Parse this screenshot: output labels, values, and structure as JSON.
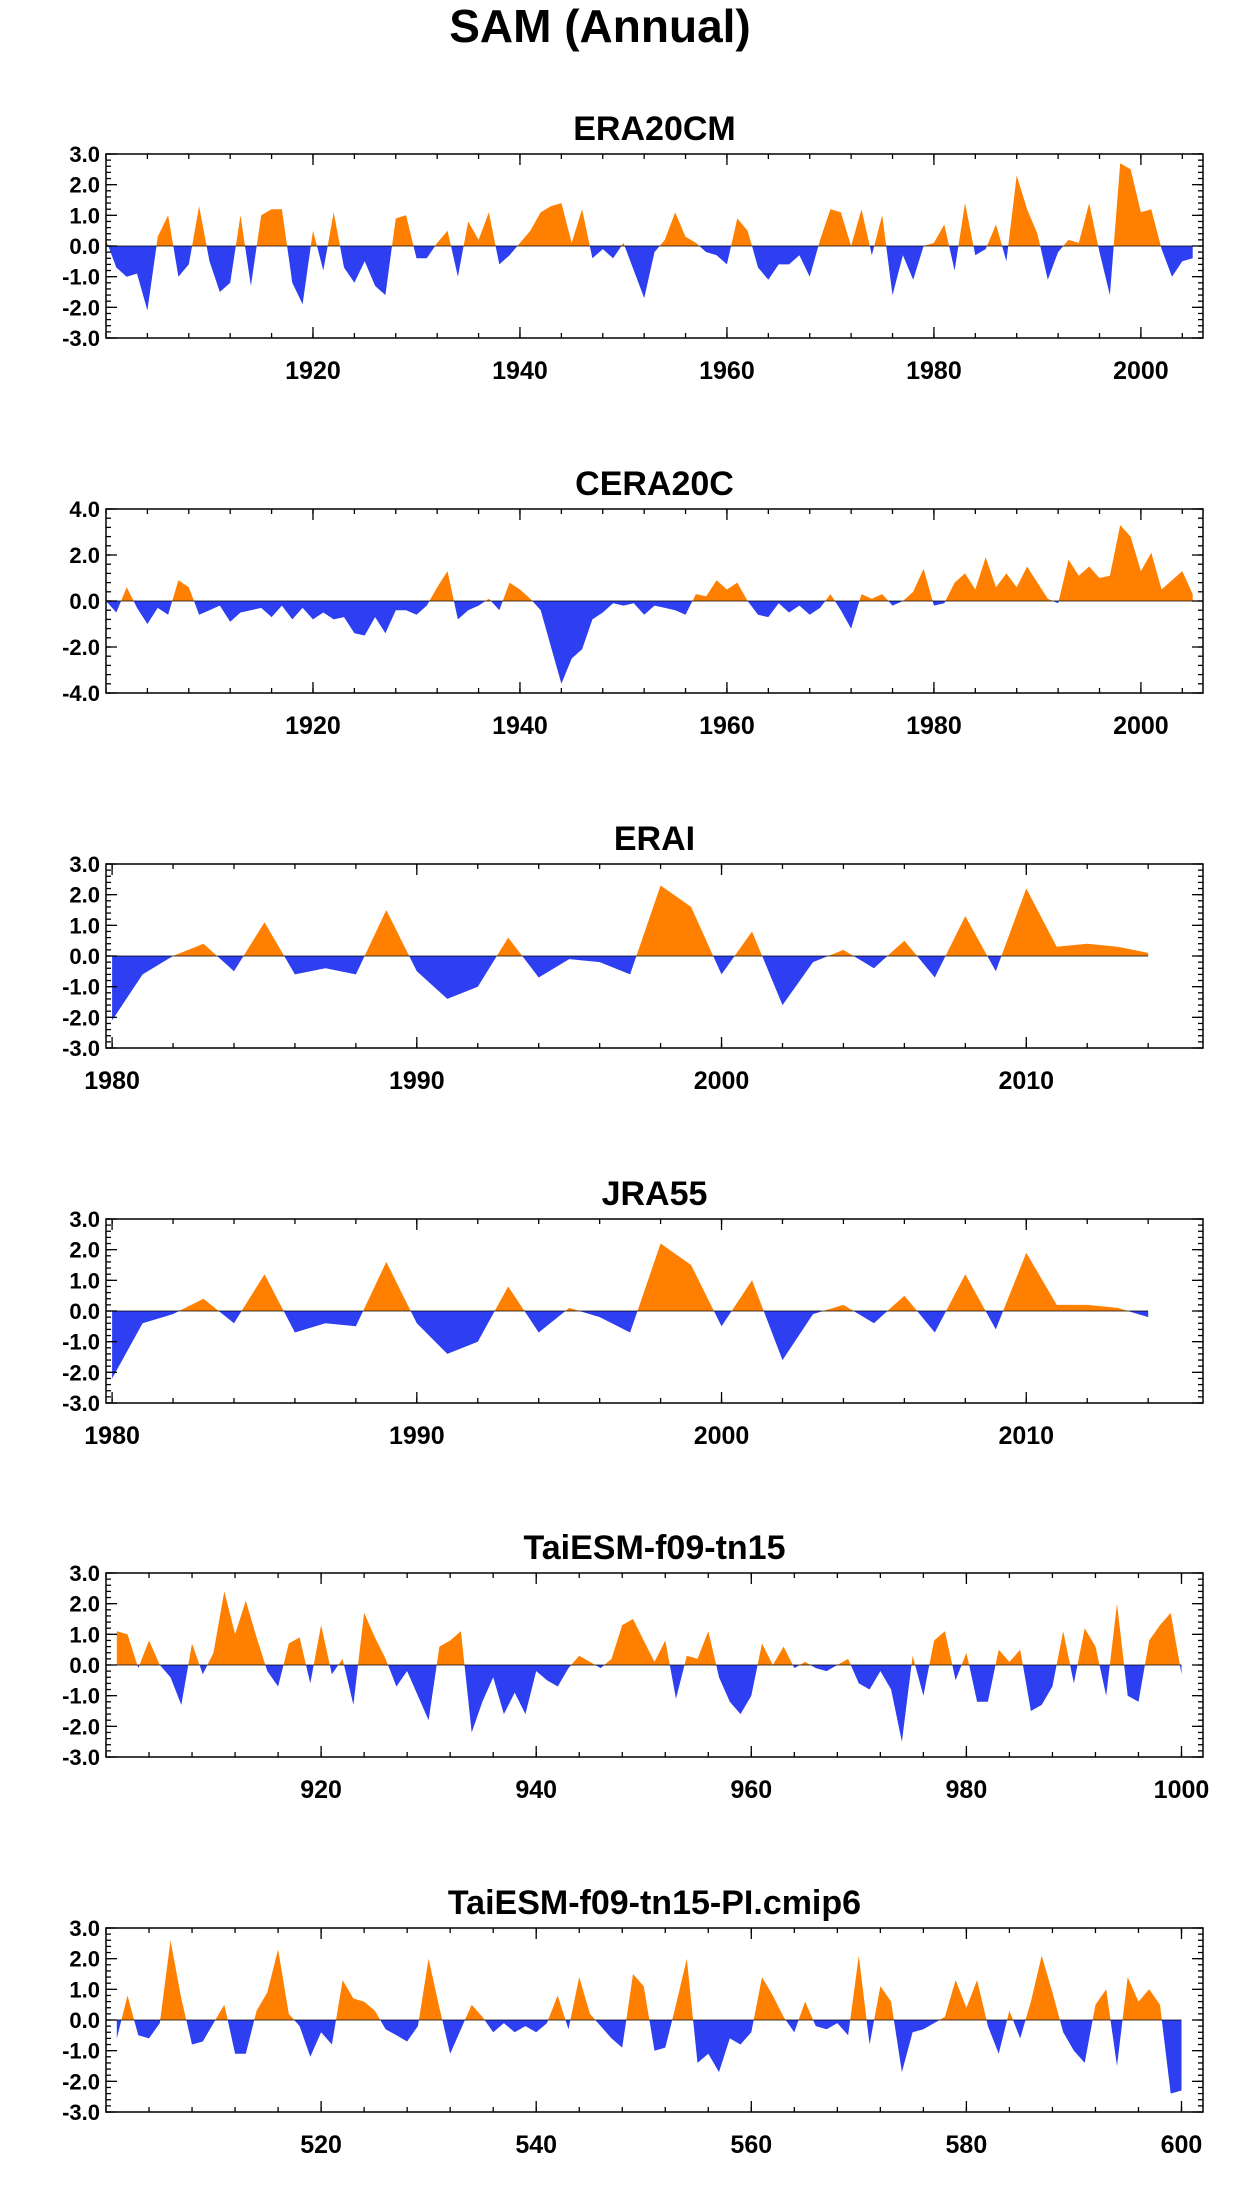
{
  "title": "SAM (Annual)",
  "colors": {
    "positive": "#ff8000",
    "negative": "#2d3ff0",
    "axis": "#000000"
  },
  "chart_data": [
    {
      "type": "area",
      "title": "ERA20CM",
      "xlim": [
        1900,
        2006
      ],
      "ylim": [
        -3.0,
        3.0
      ],
      "yticks": [
        "3.0",
        "2.0",
        "1.0",
        "0.0",
        "-1.0",
        "-2.0",
        "-3.0"
      ],
      "xticks": [
        "1920",
        "1940",
        "1960",
        "1980",
        "2000"
      ],
      "x": [
        1900,
        1901,
        1902,
        1903,
        1904,
        1905,
        1906,
        1907,
        1908,
        1909,
        1910,
        1911,
        1912,
        1913,
        1914,
        1915,
        1916,
        1917,
        1918,
        1919,
        1920,
        1921,
        1922,
        1923,
        1924,
        1925,
        1926,
        1927,
        1928,
        1929,
        1930,
        1931,
        1932,
        1933,
        1934,
        1935,
        1936,
        1937,
        1938,
        1939,
        1940,
        1941,
        1942,
        1943,
        1944,
        1945,
        1946,
        1947,
        1948,
        1949,
        1950,
        1951,
        1952,
        1953,
        1954,
        1955,
        1956,
        1957,
        1958,
        1959,
        1960,
        1961,
        1962,
        1963,
        1964,
        1965,
        1966,
        1967,
        1968,
        1969,
        1970,
        1971,
        1972,
        1973,
        1974,
        1975,
        1976,
        1977,
        1978,
        1979,
        1980,
        1981,
        1982,
        1983,
        1984,
        1985,
        1986,
        1987,
        1988,
        1989,
        1990,
        1991,
        1992,
        1993,
        1994,
        1995,
        1996,
        1997,
        1998,
        1999,
        2000,
        2001,
        2002,
        2003,
        2004,
        2005
      ],
      "values": [
        0.2,
        -0.7,
        -1.0,
        -0.9,
        -2.1,
        0.3,
        1.0,
        -1.0,
        -0.6,
        1.3,
        -0.5,
        -1.5,
        -1.2,
        1.0,
        -1.3,
        1.0,
        1.2,
        1.2,
        -1.2,
        -1.9,
        0.5,
        -0.8,
        1.1,
        -0.7,
        -1.2,
        -0.5,
        -1.3,
        -1.6,
        0.9,
        1.0,
        -0.4,
        -0.4,
        0.1,
        0.5,
        -1.0,
        0.8,
        0.2,
        1.1,
        -0.6,
        -0.3,
        0.1,
        0.5,
        1.1,
        1.3,
        1.4,
        0.1,
        1.2,
        -0.4,
        -0.1,
        -0.4,
        0.1,
        -0.8,
        -1.7,
        -0.2,
        0.2,
        1.1,
        0.3,
        0.1,
        -0.2,
        -0.3,
        -0.6,
        0.9,
        0.5,
        -0.7,
        -1.1,
        -0.6,
        -0.6,
        -0.3,
        -1.0,
        0.2,
        1.2,
        1.1,
        0.0,
        1.2,
        -0.3,
        1.0,
        -1.6,
        -0.3,
        -1.1,
        0.0,
        0.1,
        0.7,
        -0.8,
        1.4,
        -0.3,
        -0.1,
        0.7,
        -0.5,
        2.3,
        1.2,
        0.4,
        -1.1,
        -0.2,
        0.2,
        0.1,
        1.4,
        -0.2,
        -1.6,
        2.7,
        2.5,
        1.1,
        1.2,
        -0.1,
        -1.0,
        -0.5,
        -0.4
      ]
    },
    {
      "type": "area",
      "title": "CERA20C",
      "xlim": [
        1900,
        2006
      ],
      "ylim": [
        -4.0,
        4.0
      ],
      "yticks": [
        "4.0",
        "2.0",
        "0.0",
        "-2.0",
        "-4.0"
      ],
      "xticks": [
        "1920",
        "1940",
        "1960",
        "1980",
        "2000"
      ],
      "x": [
        1900,
        1901,
        1902,
        1903,
        1904,
        1905,
        1906,
        1907,
        1908,
        1909,
        1910,
        1911,
        1912,
        1913,
        1914,
        1915,
        1916,
        1917,
        1918,
        1919,
        1920,
        1921,
        1922,
        1923,
        1924,
        1925,
        1926,
        1927,
        1928,
        1929,
        1930,
        1931,
        1932,
        1933,
        1934,
        1935,
        1936,
        1937,
        1938,
        1939,
        1940,
        1941,
        1942,
        1943,
        1944,
        1945,
        1946,
        1947,
        1948,
        1949,
        1950,
        1951,
        1952,
        1953,
        1954,
        1955,
        1956,
        1957,
        1958,
        1959,
        1960,
        1961,
        1962,
        1963,
        1964,
        1965,
        1966,
        1967,
        1968,
        1969,
        1970,
        1971,
        1972,
        1973,
        1974,
        1975,
        1976,
        1977,
        1978,
        1979,
        1980,
        1981,
        1982,
        1983,
        1984,
        1985,
        1986,
        1987,
        1988,
        1989,
        1990,
        1991,
        1992,
        1993,
        1994,
        1995,
        1996,
        1997,
        1998,
        1999,
        2000,
        2001,
        2002,
        2003,
        2004,
        2005
      ],
      "values": [
        0.0,
        -0.5,
        0.6,
        -0.3,
        -1.0,
        -0.3,
        -0.6,
        0.9,
        0.6,
        -0.6,
        -0.4,
        -0.2,
        -0.9,
        -0.5,
        -0.4,
        -0.3,
        -0.7,
        -0.2,
        -0.8,
        -0.3,
        -0.8,
        -0.5,
        -0.8,
        -0.7,
        -1.4,
        -1.5,
        -0.7,
        -1.4,
        -0.4,
        -0.4,
        -0.6,
        -0.2,
        0.6,
        1.3,
        -0.8,
        -0.4,
        -0.2,
        0.1,
        -0.4,
        0.8,
        0.5,
        0.1,
        -0.4,
        -2.0,
        -3.6,
        -2.5,
        -2.1,
        -0.8,
        -0.5,
        -0.1,
        -0.2,
        -0.1,
        -0.6,
        -0.2,
        -0.3,
        -0.4,
        -0.6,
        0.3,
        0.2,
        0.9,
        0.5,
        0.8,
        0.0,
        -0.6,
        -0.7,
        -0.1,
        -0.5,
        -0.2,
        -0.6,
        -0.3,
        0.3,
        -0.4,
        -1.2,
        0.3,
        0.1,
        0.3,
        -0.2,
        0.0,
        0.4,
        1.4,
        -0.2,
        -0.1,
        0.8,
        1.2,
        0.5,
        1.9,
        0.6,
        1.2,
        0.6,
        1.5,
        0.8,
        0.1,
        -0.1,
        1.8,
        1.1,
        1.5,
        1.0,
        1.1,
        3.3,
        2.8,
        1.3,
        2.1,
        0.5,
        0.9,
        1.3,
        0.3
      ]
    },
    {
      "type": "area",
      "title": "ERAI",
      "xlim": [
        1979.8,
        2015.8
      ],
      "ylim": [
        -3.0,
        3.0
      ],
      "yticks": [
        "3.0",
        "2.0",
        "1.0",
        "0.0",
        "-1.0",
        "-2.0",
        "-3.0"
      ],
      "xticks": [
        "1980",
        "1990",
        "2000",
        "2010"
      ],
      "x": [
        1980,
        1981,
        1982,
        1983,
        1984,
        1985,
        1986,
        1987,
        1988,
        1989,
        1990,
        1991,
        1992,
        1993,
        1994,
        1995,
        1996,
        1997,
        1998,
        1999,
        2000,
        2001,
        2002,
        2003,
        2004,
        2005,
        2006,
        2007,
        2008,
        2009,
        2010,
        2011,
        2012,
        2013,
        2014
      ],
      "values": [
        -2.1,
        -0.6,
        0.0,
        0.4,
        -0.5,
        1.1,
        -0.6,
        -0.4,
        -0.6,
        1.5,
        -0.5,
        -1.4,
        -1.0,
        0.6,
        -0.7,
        -0.1,
        -0.2,
        -0.6,
        2.3,
        1.6,
        -0.6,
        0.8,
        -1.6,
        -0.2,
        0.2,
        -0.4,
        0.5,
        -0.7,
        1.3,
        -0.5,
        2.2,
        0.3,
        0.4,
        0.3,
        0.1
      ]
    },
    {
      "type": "area",
      "title": "JRA55",
      "xlim": [
        1979.8,
        2015.8
      ],
      "ylim": [
        -3.0,
        3.0
      ],
      "yticks": [
        "3.0",
        "2.0",
        "1.0",
        "0.0",
        "-1.0",
        "-2.0",
        "-3.0"
      ],
      "xticks": [
        "1980",
        "1990",
        "2000",
        "2010"
      ],
      "x": [
        1980,
        1981,
        1982,
        1983,
        1984,
        1985,
        1986,
        1987,
        1988,
        1989,
        1990,
        1991,
        1992,
        1993,
        1994,
        1995,
        1996,
        1997,
        1998,
        1999,
        2000,
        2001,
        2002,
        2003,
        2004,
        2005,
        2006,
        2007,
        2008,
        2009,
        2010,
        2011,
        2012,
        2013,
        2014
      ],
      "values": [
        -2.2,
        -0.4,
        -0.1,
        0.4,
        -0.4,
        1.2,
        -0.7,
        -0.4,
        -0.5,
        1.6,
        -0.4,
        -1.4,
        -1.0,
        0.8,
        -0.7,
        0.1,
        -0.2,
        -0.7,
        2.2,
        1.5,
        -0.5,
        1.0,
        -1.6,
        -0.1,
        0.2,
        -0.4,
        0.5,
        -0.7,
        1.2,
        -0.6,
        1.9,
        0.2,
        0.2,
        0.1,
        -0.2
      ]
    },
    {
      "type": "area",
      "title": "TaiESM-f09-tn15",
      "xlim": [
        900,
        1002
      ],
      "ylim": [
        -3.0,
        3.0
      ],
      "yticks": [
        "3.0",
        "2.0",
        "1.0",
        "0.0",
        "-1.0",
        "-2.0",
        "-3.0"
      ],
      "xticks": [
        "920",
        "940",
        "960",
        "980",
        "1000"
      ],
      "x": [
        901,
        902,
        903,
        904,
        905,
        906,
        907,
        908,
        909,
        910,
        911,
        912,
        913,
        914,
        915,
        916,
        917,
        918,
        919,
        920,
        921,
        922,
        923,
        924,
        925,
        926,
        927,
        928,
        929,
        930,
        931,
        932,
        933,
        934,
        935,
        936,
        937,
        938,
        939,
        940,
        941,
        942,
        943,
        944,
        945,
        946,
        947,
        948,
        949,
        950,
        951,
        952,
        953,
        954,
        955,
        956,
        957,
        958,
        959,
        960,
        961,
        962,
        963,
        964,
        965,
        966,
        967,
        968,
        969,
        970,
        971,
        972,
        973,
        974,
        975,
        976,
        977,
        978,
        979,
        980,
        981,
        982,
        983,
        984,
        985,
        986,
        987,
        988,
        989,
        990,
        991,
        992,
        993,
        994,
        995,
        996,
        997,
        998,
        999,
        1000
      ],
      "values": [
        1.1,
        1.0,
        -0.1,
        0.8,
        0.0,
        -0.4,
        -1.3,
        0.7,
        -0.3,
        0.4,
        2.4,
        1.0,
        2.1,
        0.9,
        -0.2,
        -0.7,
        0.7,
        0.9,
        -0.6,
        1.3,
        -0.3,
        0.2,
        -1.3,
        1.7,
        0.9,
        0.2,
        -0.7,
        -0.2,
        -1.0,
        -1.8,
        0.6,
        0.8,
        1.1,
        -2.2,
        -1.2,
        -0.4,
        -1.6,
        -0.9,
        -1.6,
        -0.2,
        -0.5,
        -0.7,
        -0.1,
        0.3,
        0.1,
        -0.1,
        0.2,
        1.3,
        1.5,
        0.8,
        0.1,
        0.8,
        -1.1,
        0.3,
        0.2,
        1.1,
        -0.4,
        -1.2,
        -1.6,
        -1.0,
        0.7,
        0.0,
        0.6,
        -0.1,
        0.1,
        -0.1,
        -0.2,
        0.0,
        0.2,
        -0.6,
        -0.8,
        -0.2,
        -0.8,
        -2.5,
        0.3,
        -1.0,
        0.8,
        1.1,
        -0.5,
        0.4,
        -1.2,
        -1.2,
        0.5,
        0.1,
        0.5,
        -1.5,
        -1.3,
        -0.7,
        1.1,
        -0.6,
        1.2,
        0.6,
        -1.0,
        2.0,
        -1.0,
        -1.2,
        0.8,
        1.3,
        1.7,
        -0.3
      ]
    },
    {
      "type": "area",
      "title": "TaiESM-f09-tn15-PI.cmip6",
      "xlim": [
        500,
        602
      ],
      "ylim": [
        -3.0,
        3.0
      ],
      "yticks": [
        "3.0",
        "2.0",
        "1.0",
        "0.0",
        "-1.0",
        "-2.0",
        "-3.0"
      ],
      "xticks": [
        "520",
        "540",
        "560",
        "580",
        "600"
      ],
      "x": [
        501,
        502,
        503,
        504,
        505,
        506,
        507,
        508,
        509,
        510,
        511,
        512,
        513,
        514,
        515,
        516,
        517,
        518,
        519,
        520,
        521,
        522,
        523,
        524,
        525,
        526,
        527,
        528,
        529,
        530,
        531,
        532,
        533,
        534,
        535,
        536,
        537,
        538,
        539,
        540,
        541,
        542,
        543,
        544,
        545,
        546,
        547,
        548,
        549,
        550,
        551,
        552,
        553,
        554,
        555,
        556,
        557,
        558,
        559,
        560,
        561,
        562,
        563,
        564,
        565,
        566,
        567,
        568,
        569,
        570,
        571,
        572,
        573,
        574,
        575,
        576,
        577,
        578,
        579,
        580,
        581,
        582,
        583,
        584,
        585,
        586,
        587,
        588,
        589,
        590,
        591,
        592,
        593,
        594,
        595,
        596,
        597,
        598,
        599,
        600
      ],
      "values": [
        -0.6,
        0.8,
        -0.5,
        -0.6,
        -0.1,
        2.6,
        0.7,
        -0.8,
        -0.7,
        -0.1,
        0.5,
        -1.1,
        -1.1,
        0.3,
        0.9,
        2.3,
        0.2,
        -0.2,
        -1.2,
        -0.4,
        -0.8,
        1.3,
        0.7,
        0.6,
        0.3,
        -0.3,
        -0.5,
        -0.7,
        -0.2,
        2.0,
        0.4,
        -1.1,
        -0.3,
        0.5,
        0.1,
        -0.4,
        -0.1,
        -0.4,
        -0.2,
        -0.4,
        -0.1,
        0.8,
        -0.3,
        1.4,
        0.2,
        -0.2,
        -0.6,
        -0.9,
        1.5,
        1.1,
        -1.0,
        -0.9,
        0.5,
        2.0,
        -1.4,
        -1.1,
        -1.7,
        -0.6,
        -0.8,
        -0.4,
        1.4,
        0.8,
        0.1,
        -0.4,
        0.6,
        -0.2,
        -0.3,
        -0.1,
        -0.5,
        2.1,
        -0.8,
        1.1,
        0.6,
        -1.7,
        -0.4,
        -0.3,
        -0.1,
        0.1,
        1.3,
        0.4,
        1.3,
        -0.2,
        -1.1,
        0.3,
        -0.6,
        0.6,
        2.1,
        0.9,
        -0.4,
        -1.0,
        -1.4,
        0.5,
        1.0,
        -1.5,
        1.4,
        0.6,
        1.0,
        0.5,
        -2.4,
        -2.3
      ]
    }
  ]
}
